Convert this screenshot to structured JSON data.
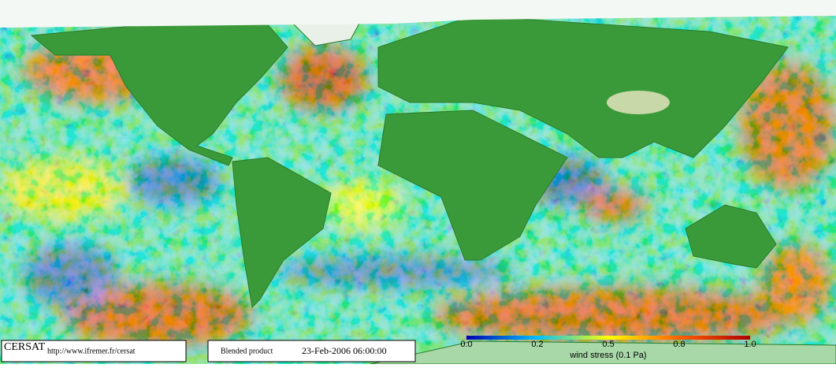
{
  "footer": {
    "logo": "CERSAT",
    "url": "http://www.ifremer.fr/cersat",
    "product": "Blended product",
    "date": "23-Feb-2006 06:00:00"
  },
  "colorbar": {
    "ticks": [
      "0.0",
      "0.2",
      "0.5",
      "0.8",
      "1.0"
    ],
    "label": "wind stress (0.1 Pa)"
  }
}
